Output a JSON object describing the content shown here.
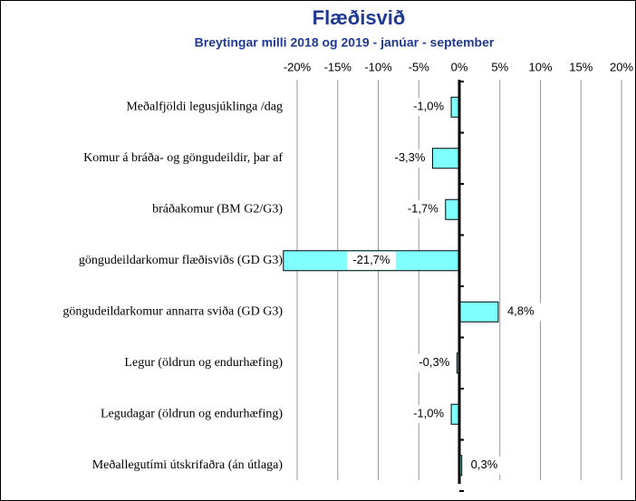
{
  "chart_data": {
    "type": "bar",
    "orientation": "horizontal",
    "title": "Flæðisvið",
    "subtitle": "Breytingar milli 2018 og 2019 - janúar - september",
    "categories": [
      "Meðalfjöldi legusjúklinga /dag",
      "Komur á bráða- og göngudeildir, þar af",
      "bráðakomur (BM G2/G3)",
      "göngudeildarkomur flæðisviðs (GD G3)",
      "göngudeildarkomur annarra sviða (GD G3)",
      "Legur (öldrun og endurhæfing)",
      "Legudagar (öldrun og endurhæfing)",
      "Meðallegutími útskrifaðra (án útlaga)"
    ],
    "values": [
      -1.0,
      -3.3,
      -1.7,
      -21.7,
      4.8,
      -0.3,
      -1.0,
      0.3
    ],
    "value_labels": [
      "-1,0%",
      "-3,3%",
      "-1,7%",
      "-21,7%",
      "4,8%",
      "-0,3%",
      "-1,0%",
      "0,3%"
    ],
    "color": "#80ffff",
    "xlim": [
      -20,
      20
    ],
    "xticks": [
      {
        "value": -20,
        "label": "-20%"
      },
      {
        "value": -15,
        "label": "-15%"
      },
      {
        "value": -10,
        "label": "-10%"
      },
      {
        "value": -5,
        "label": "-5%"
      },
      {
        "value": 0,
        "label": "0%"
      },
      {
        "value": 5,
        "label": "5%"
      },
      {
        "value": 10,
        "label": "10%"
      },
      {
        "value": 15,
        "label": "15%"
      },
      {
        "value": 20,
        "label": "20%"
      }
    ],
    "grid": true
  }
}
